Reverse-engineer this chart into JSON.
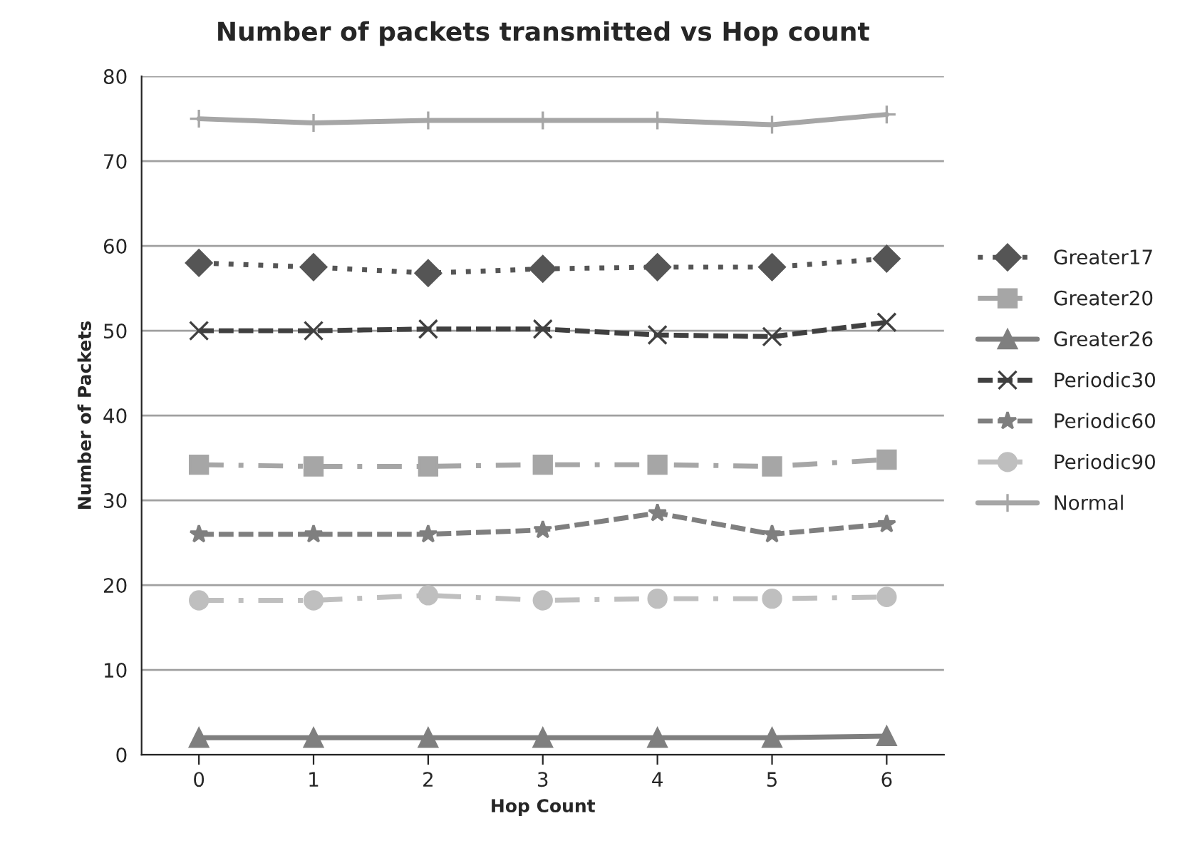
{
  "chart_data": {
    "type": "line",
    "title": "Number of packets transmitted vs Hop count",
    "xlabel": "Hop Count",
    "ylabel": "Number of Packets",
    "categories": [
      "0",
      "1",
      "2",
      "3",
      "4",
      "5",
      "6"
    ],
    "ylim": [
      0,
      80
    ],
    "yticks": [
      0,
      10,
      20,
      30,
      40,
      50,
      60,
      70,
      80
    ],
    "grid": "y",
    "legend": "right",
    "series": [
      {
        "name": "Greater17",
        "color": "#555555",
        "marker": "diamond",
        "line_style": "dotted",
        "values": [
          58,
          57.5,
          56.8,
          57.3,
          57.5,
          57.5,
          58.5
        ]
      },
      {
        "name": "Greater20",
        "color": "#a6a6a6",
        "marker": "square",
        "line_style": "dashdot",
        "values": [
          34.2,
          34,
          34,
          34.2,
          34.2,
          34,
          34.8
        ]
      },
      {
        "name": "Greater26",
        "color": "#7f7f7f",
        "marker": "triangle",
        "line_style": "solid",
        "values": [
          2,
          2,
          2,
          2,
          2,
          2,
          2.2
        ]
      },
      {
        "name": "Periodic30",
        "color": "#404040",
        "marker": "cross",
        "line_style": "dashed",
        "values": [
          50,
          50,
          50.2,
          50.2,
          49.5,
          49.3,
          51
        ]
      },
      {
        "name": "Periodic60",
        "color": "#7f7f7f",
        "marker": "star",
        "line_style": "dashed",
        "values": [
          26,
          26,
          26,
          26.5,
          28.5,
          26,
          27.2
        ]
      },
      {
        "name": "Periodic90",
        "color": "#bfbfbf",
        "marker": "circle",
        "line_style": "dashdot",
        "values": [
          18.2,
          18.2,
          18.8,
          18.2,
          18.4,
          18.4,
          18.6
        ]
      },
      {
        "name": "Normal",
        "color": "#a6a6a6",
        "marker": "plus",
        "line_style": "solid",
        "values": [
          75,
          74.5,
          74.8,
          74.8,
          74.8,
          74.3,
          75.5
        ]
      }
    ]
  }
}
